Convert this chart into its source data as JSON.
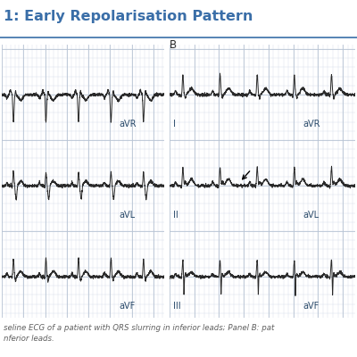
{
  "title": "1: Early Repolarisation Pattern",
  "title_color": "#3a6ea8",
  "title_separator_color": "#3a6ea8",
  "background_color": "#ffffff",
  "grid_color_major": "#b8c4d4",
  "grid_color_minor": "#d4dbe8",
  "ecg_color": "#2a2a2a",
  "panel_a_leads": [
    "aVR",
    "aVL",
    "aVF"
  ],
  "panel_b_leads": [
    "I",
    "II",
    "III"
  ],
  "panel_b_right_labels": [
    "aVR",
    "aVL",
    "aVF"
  ],
  "caption_line1": "seline ECG of a patient with QRS slurring in inferior leads; Panel B: pat",
  "caption_line2": "nferior leads.",
  "caption_color": "#606060",
  "caption_fontsize": 6.2,
  "panel_bg": "#dde3ee"
}
